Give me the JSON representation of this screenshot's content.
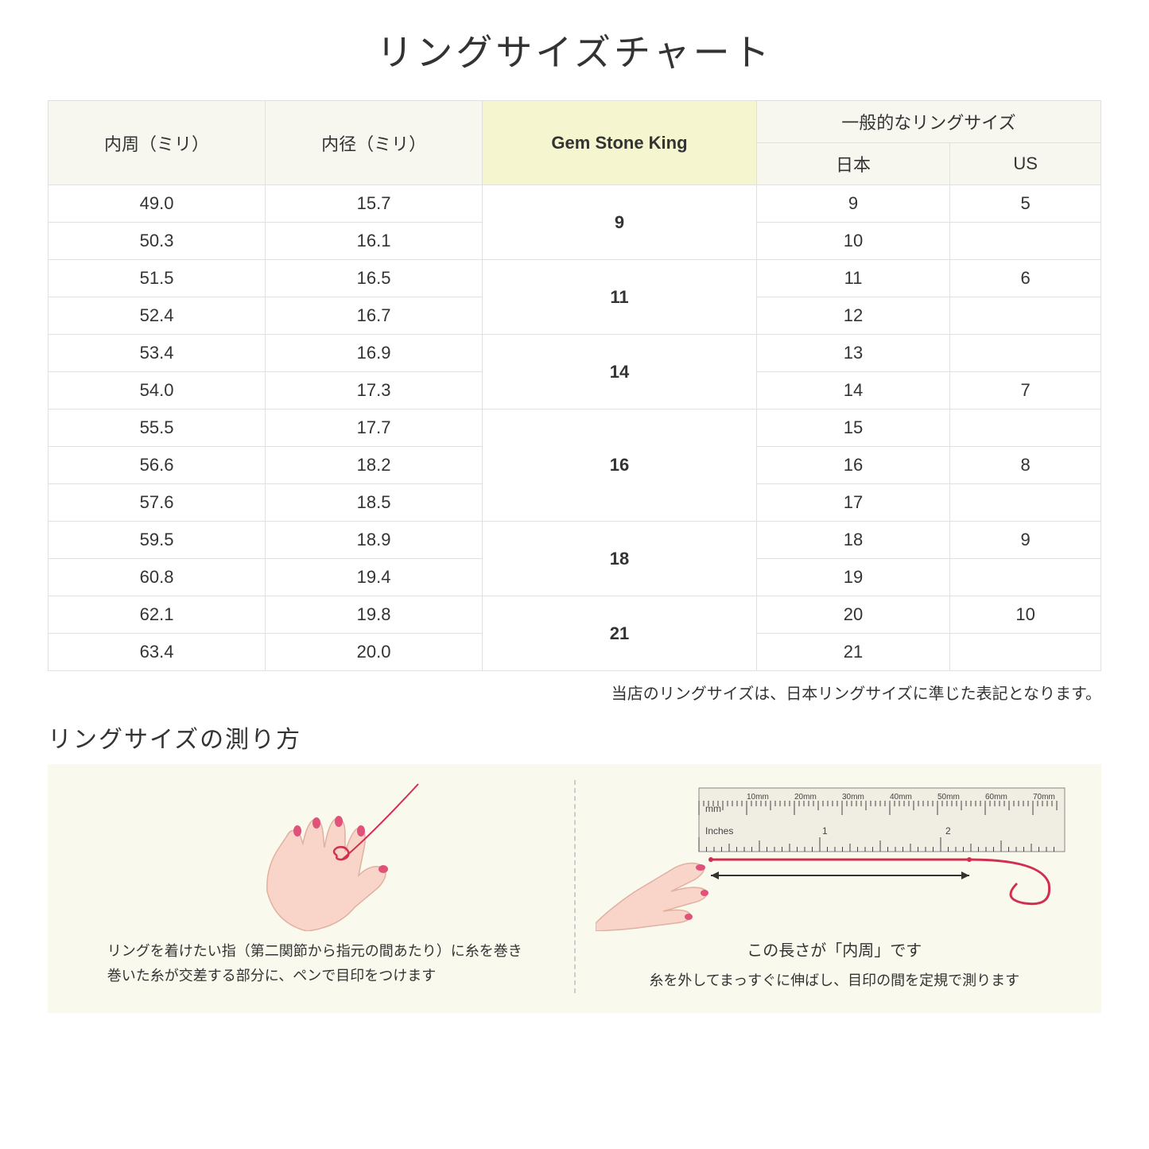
{
  "title": "リングサイズチャート",
  "table": {
    "headers": {
      "col1": "内周（ミリ）",
      "col2": "内径（ミリ）",
      "col3": "Gem Stone King",
      "col4_group": "一般的なリングサイズ",
      "col4a": "日本",
      "col4b": "US"
    },
    "highlight_bg": "#f5f5d0",
    "header_bg": "#f7f7f0",
    "border_color": "#e0e0e0",
    "rows": [
      {
        "c1": "49.0",
        "c2": "15.7",
        "gsk": "9",
        "jp": "9",
        "us": "5"
      },
      {
        "c1": "50.3",
        "c2": "16.1",
        "gsk": "",
        "jp": "10",
        "us": ""
      },
      {
        "c1": "51.5",
        "c2": "16.5",
        "gsk": "11",
        "jp": "11",
        "us": "6"
      },
      {
        "c1": "52.4",
        "c2": "16.7",
        "gsk": "",
        "jp": "12",
        "us": ""
      },
      {
        "c1": "53.4",
        "c2": "16.9",
        "gsk": "14",
        "jp": "13",
        "us": ""
      },
      {
        "c1": "54.0",
        "c2": "17.3",
        "gsk": "",
        "jp": "14",
        "us": "7"
      },
      {
        "c1": "55.5",
        "c2": "17.7",
        "gsk": "16",
        "jp": "15",
        "us": ""
      },
      {
        "c1": "56.6",
        "c2": "18.2",
        "gsk": "",
        "jp": "16",
        "us": "8"
      },
      {
        "c1": "57.6",
        "c2": "18.5",
        "gsk": "",
        "jp": "17",
        "us": ""
      },
      {
        "c1": "59.5",
        "c2": "18.9",
        "gsk": "18",
        "jp": "18",
        "us": "9"
      },
      {
        "c1": "60.8",
        "c2": "19.4",
        "gsk": "",
        "jp": "19",
        "us": ""
      },
      {
        "c1": "62.1",
        "c2": "19.8",
        "gsk": "21",
        "jp": "20",
        "us": "10"
      },
      {
        "c1": "63.4",
        "c2": "20.0",
        "gsk": "",
        "jp": "21",
        "us": ""
      }
    ],
    "gsk_spans": [
      2,
      2,
      2,
      3,
      2,
      2
    ]
  },
  "note": "当店のリングサイズは、日本リングサイズに準じた表記となります。",
  "howto": {
    "title": "リングサイズの測り方",
    "panel1_text": "リングを着けたい指（第二関節から指元の間あたり）に糸を巻き\n巻いた糸が交差する部分に、ペンで目印をつけます",
    "panel2_label": "この長さが「内周」です",
    "panel2_text": "糸を外してまっすぐに伸ばし、目印の間を定規で測ります",
    "ruler_mm": "mm",
    "ruler_inches": "Inches",
    "ruler_mm_labels": [
      "10mm",
      "20mm",
      "30mm",
      "40mm",
      "50mm",
      "60mm",
      "70mm"
    ],
    "ruler_inch_labels": [
      "1",
      "2"
    ]
  },
  "colors": {
    "background": "#ffffff",
    "panel_bg": "#faf9ed",
    "hand_skin": "#f8d5c8",
    "hand_outline": "#e0b0a0",
    "nail": "#e0527a",
    "thread": "#d03050",
    "ruler_body": "#f0ede3",
    "ruler_mark": "#444444",
    "arrow": "#333333"
  }
}
